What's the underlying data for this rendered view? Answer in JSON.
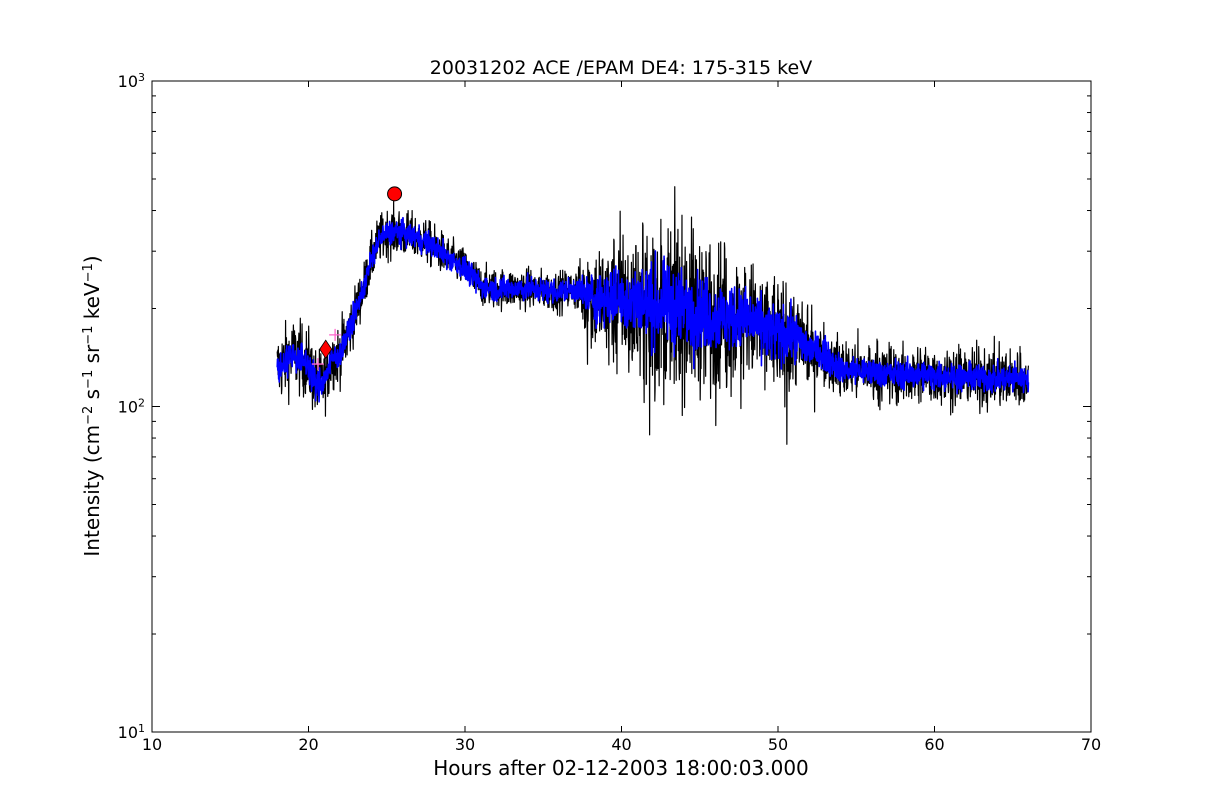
{
  "chart_data": {
    "type": "line",
    "title": "20031202 ACE /EPAM DE4: 175-315 keV",
    "xlabel": "Hours after 02-12-2003 18:00:03.000",
    "ylabel_parts": {
      "prefix": "Intensity (cm",
      "sup1": "−2",
      "s": " s",
      "sup2": "−1",
      "sr": " sr",
      "sup3": "−1",
      "kev": " keV",
      "sup4": "−1",
      "suffix": ")"
    },
    "xlim": [
      10,
      70
    ],
    "ylim": [
      10,
      1000
    ],
    "yscale": "log",
    "xticks": [
      10,
      20,
      30,
      40,
      50,
      60,
      70
    ],
    "xtick_labels": [
      "10",
      "20",
      "30",
      "40",
      "50",
      "60",
      "70"
    ],
    "yticks": [
      10,
      100,
      1000
    ],
    "ytick_labels": [
      {
        "base": "10",
        "exp": "1"
      },
      {
        "base": "10",
        "exp": "2"
      },
      {
        "base": "10",
        "exp": "3"
      }
    ],
    "grid": false,
    "series": [
      {
        "style": "raw",
        "color": "#000000",
        "x": [
          18,
          19,
          20,
          20.5,
          21,
          21.5,
          22,
          22.5,
          23,
          23.5,
          24,
          24.5,
          25,
          25.5,
          26,
          27,
          28,
          29,
          30,
          31,
          32,
          34,
          36,
          37,
          38,
          40,
          42,
          44,
          46,
          48,
          50,
          51,
          52,
          53,
          54,
          56,
          58,
          60,
          62,
          64,
          66
        ],
        "y": [
          130,
          145,
          135,
          115,
          120,
          140,
          145,
          165,
          195,
          230,
          280,
          325,
          340,
          345,
          340,
          330,
          310,
          285,
          265,
          235,
          230,
          230,
          225,
          230,
          215,
          215,
          205,
          200,
          190,
          185,
          165,
          165,
          150,
          145,
          130,
          128,
          125,
          125,
          123,
          122,
          122
        ],
        "noise": [
          0.18,
          0.18,
          0.18,
          0.18,
          0.16,
          0.15,
          0.15,
          0.15,
          0.13,
          0.12,
          0.12,
          0.12,
          0.12,
          0.12,
          0.12,
          0.11,
          0.11,
          0.1,
          0.1,
          0.1,
          0.1,
          0.1,
          0.1,
          0.1,
          0.25,
          0.35,
          0.42,
          0.42,
          0.38,
          0.3,
          0.3,
          0.25,
          0.22,
          0.15,
          0.15,
          0.15,
          0.15,
          0.15,
          0.15,
          0.15,
          0.15
        ]
      },
      {
        "style": "smoothed",
        "color": "#0000ff",
        "x": [
          18,
          19,
          20,
          20.5,
          21,
          21.5,
          22,
          22.5,
          23,
          23.5,
          24,
          24.5,
          25,
          25.5,
          26,
          27,
          28,
          29,
          30,
          31,
          32,
          34,
          36,
          37,
          38,
          40,
          42,
          44,
          46,
          48,
          50,
          51,
          52,
          53,
          54,
          56,
          58,
          60,
          62,
          64,
          66
        ],
        "y": [
          130,
          145,
          135,
          115,
          120,
          140,
          145,
          165,
          195,
          230,
          280,
          325,
          340,
          345,
          340,
          330,
          310,
          285,
          265,
          235,
          230,
          230,
          225,
          230,
          215,
          215,
          205,
          200,
          190,
          185,
          165,
          165,
          150,
          145,
          130,
          128,
          125,
          125,
          123,
          122,
          122
        ],
        "noise": [
          0.08,
          0.08,
          0.08,
          0.08,
          0.07,
          0.07,
          0.07,
          0.07,
          0.06,
          0.06,
          0.06,
          0.06,
          0.06,
          0.06,
          0.06,
          0.06,
          0.06,
          0.06,
          0.06,
          0.06,
          0.06,
          0.06,
          0.06,
          0.06,
          0.12,
          0.16,
          0.2,
          0.2,
          0.18,
          0.15,
          0.15,
          0.12,
          0.1,
          0.08,
          0.07,
          0.07,
          0.07,
          0.07,
          0.07,
          0.07,
          0.07
        ]
      }
    ],
    "markers": [
      {
        "shape": "circle",
        "x": 25.5,
        "y": 450,
        "color": "#ff0000"
      },
      {
        "shape": "diamond",
        "x": 21.1,
        "y": 150,
        "color": "#ff0000"
      },
      {
        "shape": "plus",
        "x": 20.6,
        "y": 135,
        "color": "#ff66cc"
      },
      {
        "shape": "plus",
        "x": 21.7,
        "y": 166,
        "color": "#ff66cc"
      }
    ]
  }
}
